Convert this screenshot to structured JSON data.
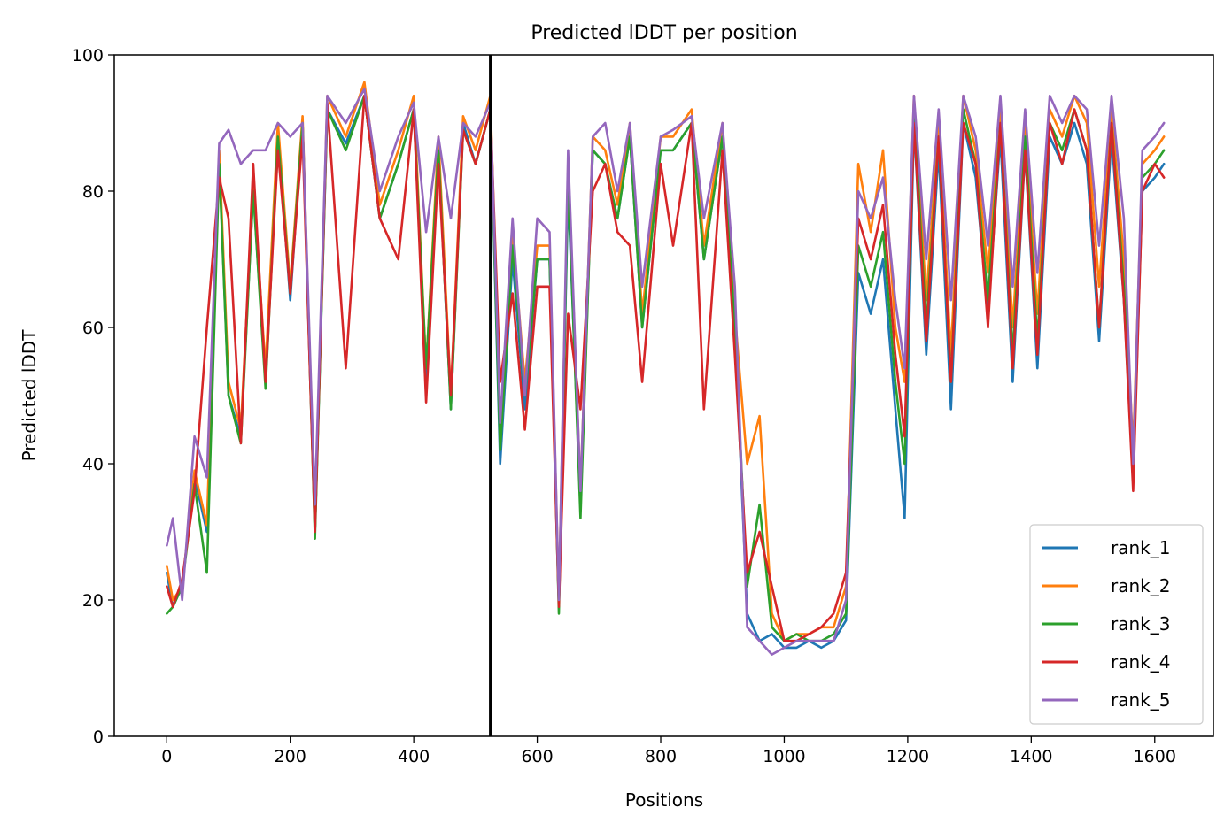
{
  "chart_data": {
    "type": "line",
    "title": "Predicted lDDT per position",
    "xlabel": "Positions",
    "ylabel": "Predicted lDDT",
    "xlim": [
      -85,
      1695
    ],
    "ylim": [
      0,
      100
    ],
    "x_ticks": [
      0,
      200,
      400,
      600,
      800,
      1000,
      1200,
      1400,
      1600
    ],
    "y_ticks": [
      0,
      20,
      40,
      60,
      80,
      100
    ],
    "grid": false,
    "legend_position": "lower-right",
    "chain_break_x": 524,
    "chain_break_color": "#000000",
    "series": [
      {
        "name": "rank_1",
        "color": "#1f77b4",
        "x": [
          0,
          10,
          25,
          45,
          65,
          85,
          100,
          120,
          140,
          160,
          180,
          200,
          220,
          240,
          260,
          290,
          320,
          345,
          375,
          400,
          420,
          440,
          460,
          480,
          500,
          524,
          540,
          560,
          580,
          600,
          620,
          635,
          650,
          670,
          690,
          710,
          730,
          750,
          770,
          800,
          820,
          850,
          870,
          900,
          920,
          940,
          960,
          980,
          1000,
          1020,
          1040,
          1060,
          1080,
          1100,
          1120,
          1140,
          1160,
          1180,
          1195,
          1210,
          1230,
          1250,
          1270,
          1290,
          1310,
          1330,
          1350,
          1370,
          1390,
          1410,
          1430,
          1450,
          1470,
          1490,
          1510,
          1530,
          1550,
          1565,
          1580,
          1600,
          1615
        ],
        "y": [
          24,
          19,
          22,
          38,
          30,
          85,
          50,
          44,
          80,
          52,
          88,
          64,
          90,
          30,
          92,
          87,
          94,
          76,
          84,
          92,
          52,
          86,
          48,
          90,
          84,
          92,
          40,
          70,
          48,
          70,
          70,
          19,
          80,
          34,
          86,
          84,
          76,
          88,
          60,
          86,
          86,
          90,
          70,
          88,
          60,
          18,
          14,
          15,
          13,
          13,
          14,
          13,
          14,
          17,
          68,
          62,
          70,
          48,
          32,
          90,
          56,
          86,
          48,
          90,
          82,
          62,
          88,
          52,
          86,
          54,
          88,
          84,
          90,
          84,
          58,
          88,
          64,
          38,
          80,
          82,
          84
        ]
      },
      {
        "name": "rank_2",
        "color": "#ff7f0e",
        "x": [
          0,
          10,
          25,
          45,
          65,
          85,
          100,
          120,
          140,
          160,
          180,
          200,
          220,
          240,
          260,
          290,
          320,
          345,
          375,
          400,
          420,
          440,
          460,
          480,
          500,
          524,
          540,
          560,
          580,
          600,
          620,
          635,
          650,
          670,
          690,
          710,
          730,
          750,
          770,
          800,
          820,
          850,
          870,
          900,
          920,
          940,
          960,
          980,
          1000,
          1020,
          1040,
          1060,
          1080,
          1100,
          1120,
          1140,
          1160,
          1180,
          1195,
          1210,
          1230,
          1250,
          1270,
          1290,
          1310,
          1330,
          1350,
          1370,
          1390,
          1410,
          1430,
          1450,
          1470,
          1490,
          1510,
          1530,
          1550,
          1565,
          1580,
          1600,
          1615
        ],
        "y": [
          25,
          20,
          22,
          39,
          31,
          86,
          52,
          45,
          81,
          54,
          90,
          66,
          91,
          30,
          94,
          88,
          96,
          78,
          86,
          94,
          54,
          88,
          50,
          91,
          86,
          94,
          44,
          74,
          52,
          72,
          72,
          20,
          84,
          36,
          88,
          86,
          78,
          90,
          62,
          88,
          88,
          92,
          72,
          90,
          62,
          40,
          47,
          18,
          14,
          15,
          15,
          16,
          16,
          22,
          84,
          74,
          86,
          60,
          52,
          94,
          64,
          90,
          56,
          94,
          86,
          68,
          92,
          60,
          90,
          62,
          92,
          88,
          94,
          90,
          66,
          92,
          70,
          42,
          84,
          86,
          88
        ]
      },
      {
        "name": "rank_3",
        "color": "#2ca02c",
        "x": [
          0,
          10,
          25,
          45,
          65,
          85,
          100,
          120,
          140,
          160,
          180,
          200,
          220,
          240,
          260,
          290,
          320,
          345,
          375,
          400,
          420,
          440,
          460,
          480,
          500,
          524,
          540,
          560,
          580,
          600,
          620,
          635,
          650,
          670,
          690,
          710,
          730,
          750,
          770,
          800,
          820,
          850,
          870,
          900,
          920,
          940,
          960,
          980,
          1000,
          1020,
          1040,
          1060,
          1080,
          1100,
          1120,
          1140,
          1160,
          1180,
          1195,
          1210,
          1230,
          1250,
          1270,
          1290,
          1310,
          1330,
          1350,
          1370,
          1390,
          1410,
          1430,
          1450,
          1470,
          1490,
          1510,
          1530,
          1550,
          1565,
          1580,
          1600,
          1615
        ],
        "y": [
          18,
          19,
          22,
          37,
          24,
          84,
          50,
          43,
          80,
          51,
          88,
          65,
          90,
          29,
          92,
          86,
          94,
          76,
          84,
          92,
          54,
          86,
          48,
          89,
          84,
          92,
          42,
          72,
          50,
          70,
          70,
          18,
          82,
          32,
          86,
          84,
          76,
          88,
          60,
          86,
          86,
          90,
          70,
          88,
          60,
          22,
          34,
          16,
          14,
          15,
          14,
          14,
          15,
          18,
          72,
          66,
          74,
          52,
          40,
          92,
          60,
          88,
          52,
          92,
          84,
          64,
          90,
          56,
          88,
          58,
          90,
          86,
          92,
          86,
          60,
          90,
          66,
          40,
          82,
          84,
          86
        ]
      },
      {
        "name": "rank_4",
        "color": "#d62728",
        "x": [
          0,
          10,
          25,
          45,
          65,
          85,
          100,
          120,
          140,
          160,
          180,
          200,
          220,
          240,
          260,
          290,
          320,
          345,
          375,
          400,
          420,
          440,
          460,
          480,
          500,
          524,
          540,
          560,
          580,
          600,
          620,
          635,
          650,
          670,
          690,
          710,
          730,
          750,
          770,
          800,
          820,
          850,
          870,
          900,
          920,
          940,
          960,
          980,
          1000,
          1020,
          1040,
          1060,
          1080,
          1100,
          1120,
          1140,
          1160,
          1180,
          1195,
          1210,
          1230,
          1250,
          1270,
          1290,
          1310,
          1330,
          1350,
          1370,
          1390,
          1410,
          1430,
          1450,
          1470,
          1490,
          1510,
          1530,
          1550,
          1565,
          1580,
          1600,
          1615
        ],
        "y": [
          22,
          19,
          23,
          36,
          60,
          82,
          76,
          43,
          84,
          52,
          86,
          65,
          88,
          30,
          93,
          54,
          94,
          76,
          70,
          92,
          49,
          84,
          50,
          89,
          84,
          92,
          52,
          65,
          45,
          66,
          66,
          19,
          62,
          48,
          80,
          84,
          74,
          72,
          52,
          84,
          72,
          90,
          48,
          86,
          56,
          24,
          30,
          22,
          14,
          14,
          15,
          16,
          18,
          24,
          76,
          70,
          78,
          56,
          44,
          90,
          58,
          88,
          52,
          90,
          84,
          60,
          90,
          54,
          86,
          56,
          90,
          84,
          92,
          86,
          60,
          90,
          64,
          36,
          80,
          84,
          82
        ]
      },
      {
        "name": "rank_5",
        "color": "#9467bd",
        "x": [
          0,
          10,
          25,
          45,
          65,
          85,
          100,
          120,
          140,
          160,
          180,
          200,
          220,
          240,
          260,
          290,
          320,
          345,
          375,
          400,
          420,
          440,
          460,
          480,
          500,
          524,
          540,
          560,
          580,
          600,
          620,
          635,
          650,
          670,
          690,
          710,
          730,
          750,
          770,
          800,
          820,
          850,
          870,
          900,
          920,
          940,
          960,
          980,
          1000,
          1020,
          1040,
          1060,
          1080,
          1100,
          1120,
          1140,
          1160,
          1180,
          1195,
          1210,
          1230,
          1250,
          1270,
          1290,
          1310,
          1330,
          1350,
          1370,
          1390,
          1410,
          1430,
          1450,
          1470,
          1490,
          1510,
          1530,
          1550,
          1565,
          1580,
          1600,
          1615
        ],
        "y": [
          28,
          32,
          20,
          44,
          38,
          87,
          89,
          84,
          86,
          86,
          90,
          88,
          90,
          34,
          94,
          90,
          95,
          80,
          88,
          93,
          74,
          88,
          76,
          90,
          88,
          93,
          46,
          76,
          50,
          76,
          74,
          20,
          86,
          36,
          88,
          90,
          80,
          90,
          66,
          88,
          89,
          91,
          76,
          90,
          66,
          16,
          14,
          12,
          13,
          14,
          14,
          14,
          14,
          20,
          80,
          76,
          82,
          64,
          54,
          94,
          70,
          92,
          64,
          94,
          88,
          72,
          94,
          66,
          92,
          68,
          94,
          90,
          94,
          92,
          72,
          94,
          76,
          40,
          86,
          88,
          90
        ]
      }
    ]
  }
}
